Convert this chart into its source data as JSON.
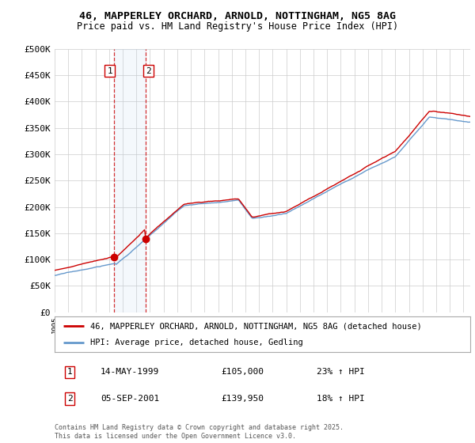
{
  "title_line1": "46, MAPPERLEY ORCHARD, ARNOLD, NOTTINGHAM, NG5 8AG",
  "title_line2": "Price paid vs. HM Land Registry's House Price Index (HPI)",
  "ylim": [
    0,
    500000
  ],
  "yticks": [
    0,
    50000,
    100000,
    150000,
    200000,
    250000,
    300000,
    350000,
    400000,
    450000,
    500000
  ],
  "ytick_labels": [
    "£0",
    "£50K",
    "£100K",
    "£150K",
    "£200K",
    "£250K",
    "£300K",
    "£350K",
    "£400K",
    "£450K",
    "£500K"
  ],
  "legend_line1": "46, MAPPERLEY ORCHARD, ARNOLD, NOTTINGHAM, NG5 8AG (detached house)",
  "legend_line2": "HPI: Average price, detached house, Gedling",
  "red_line_color": "#cc0000",
  "blue_line_color": "#6699cc",
  "transaction1_date": "14-MAY-1999",
  "transaction1_price": "£105,000",
  "transaction1_hpi": "23% ↑ HPI",
  "transaction2_date": "05-SEP-2001",
  "transaction2_price": "£139,950",
  "transaction2_hpi": "18% ↑ HPI",
  "footer": "Contains HM Land Registry data © Crown copyright and database right 2025.\nThis data is licensed under the Open Government Licence v3.0.",
  "background_color": "#ffffff",
  "grid_color": "#cccccc",
  "t1_year": 1999.375,
  "t2_year": 2001.667,
  "price1": 105000,
  "price2": 139950
}
